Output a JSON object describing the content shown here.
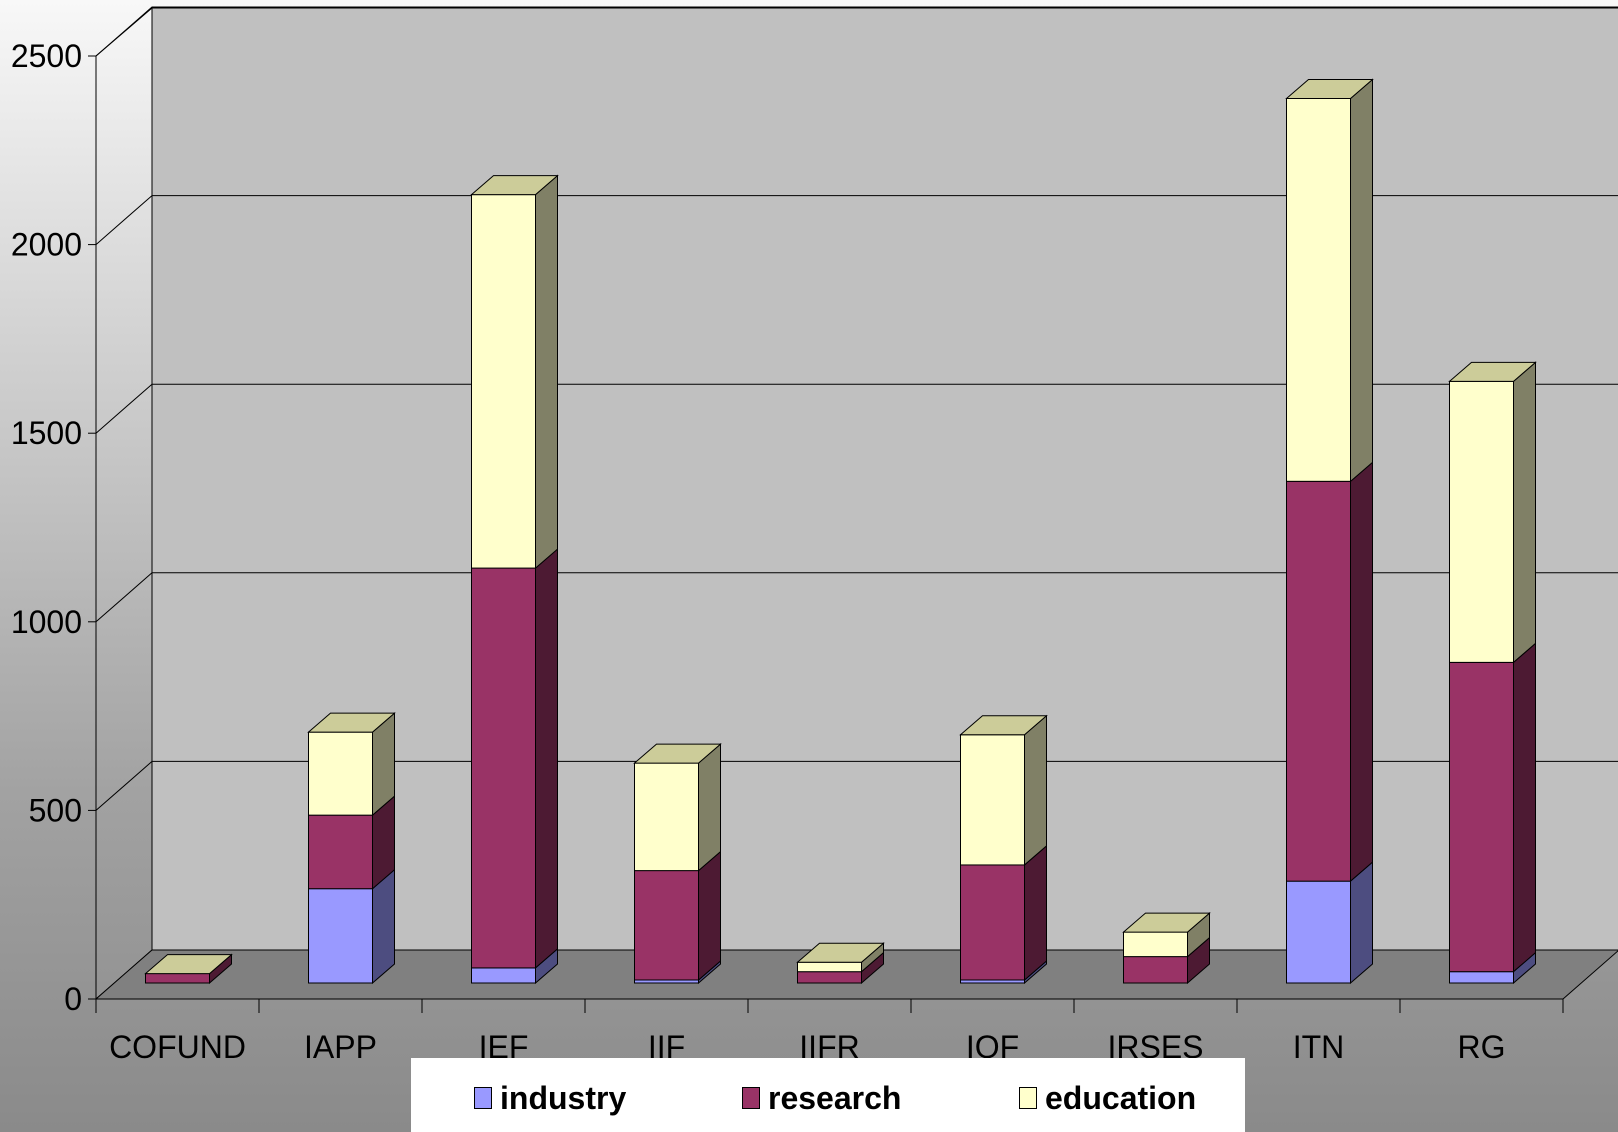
{
  "chart_data": {
    "type": "bar",
    "stacked": true,
    "three_d": true,
    "categories": [
      "COFUND",
      "IAPP",
      "IEF",
      "IIF",
      "IIFR",
      "IOF",
      "IRSES",
      "ITN",
      "RG"
    ],
    "series": [
      {
        "name": "industry",
        "color": "#9999ff",
        "side_color": "#4d4d80",
        "values": [
          0,
          250,
          40,
          8,
          0,
          8,
          0,
          270,
          30
        ]
      },
      {
        "name": "research",
        "color": "#993366",
        "side_color": "#4d1a33",
        "values": [
          25,
          195,
          1060,
          290,
          30,
          305,
          70,
          1060,
          820
        ]
      },
      {
        "name": "education",
        "color": "#ffffcc",
        "side_color": "#808066",
        "values": [
          0,
          220,
          990,
          285,
          25,
          345,
          65,
          1015,
          745
        ]
      }
    ],
    "ylim": [
      0,
      2500
    ],
    "yticks": [
      0,
      500,
      1000,
      1500,
      2000,
      2500
    ],
    "ytick_labels": [
      "0",
      "500",
      "1000",
      "1500",
      "2000",
      "2500"
    ],
    "title": "",
    "xlabel": "",
    "ylabel": "",
    "grid": true,
    "legend_position": "bottom"
  },
  "legend": {
    "items": [
      {
        "label": "industry",
        "color": "#9999ff"
      },
      {
        "label": "research",
        "color": "#993366"
      },
      {
        "label": "education",
        "color": "#ffffcc"
      }
    ]
  }
}
